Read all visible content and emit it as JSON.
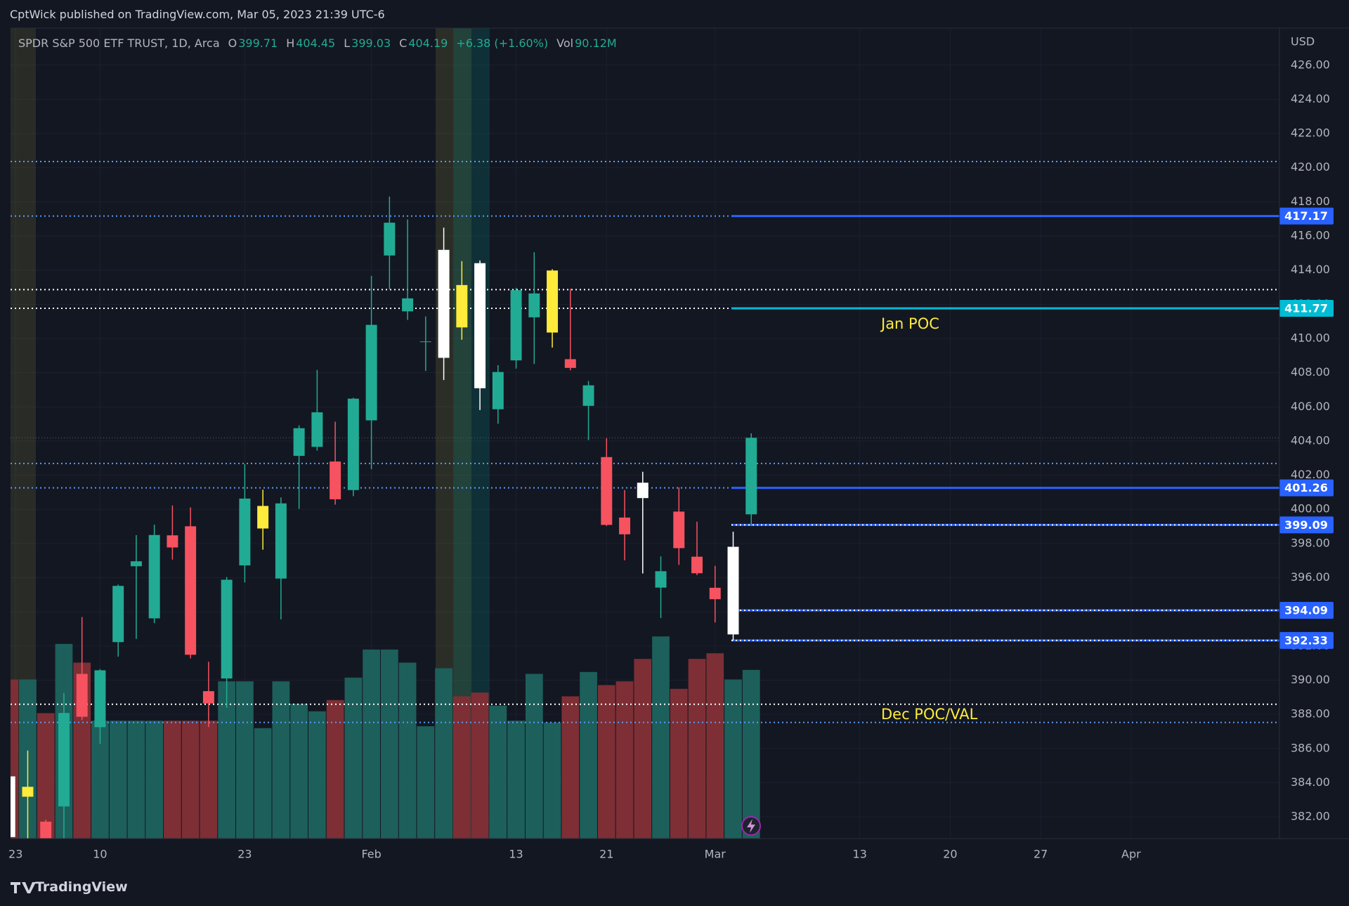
{
  "header": {
    "published": "CptWick published on TradingView.com, Mar 05, 2023 21:39 UTC-6"
  },
  "footer": {
    "brand": "TradingView"
  },
  "chart_data": {
    "type": "candlestick",
    "title": "SPDR S&P 500 ETF TRUST, 1D, Arca",
    "legend_keys": [
      "O",
      "H",
      "L",
      "C"
    ],
    "change_label": "+6.38 (+1.60%)",
    "currency": "USD",
    "open": [
      384.37,
      383.18,
      381.72,
      382.61,
      390.37,
      387.25,
      392.23,
      396.67,
      393.62,
      398.48,
      399.01,
      389.36,
      390.1,
      396.72,
      398.88,
      395.95,
      403.13,
      403.66,
      402.8,
      401.13,
      405.21,
      414.86,
      411.59,
      409.79,
      408.87,
      413.13,
      414.41,
      405.86,
      408.72,
      411.24,
      410.35,
      408.79,
      406.06,
      403.06,
      399.52,
      401.56,
      395.42,
      399.87,
      397.23,
      395.41,
      392.68,
      399.71
    ],
    "high": [
      386.43,
      385.88,
      381.84,
      389.25,
      393.7,
      390.65,
      395.6,
      398.49,
      399.1,
      400.23,
      400.12,
      391.08,
      396.04,
      402.65,
      401.15,
      400.7,
      404.92,
      408.16,
      405.13,
      406.53,
      413.67,
      418.31,
      416.97,
      411.29,
      416.49,
      414.53,
      414.57,
      408.44,
      412.97,
      415.05,
      414.06,
      412.91,
      407.51,
      404.16,
      401.13,
      402.2,
      397.25,
      401.29,
      399.28,
      396.69,
      398.69,
      404.45
    ],
    "low": [
      377.83,
      380.0,
      378.76,
      379.41,
      387.67,
      386.27,
      391.38,
      392.42,
      393.34,
      397.06,
      391.28,
      387.26,
      388.38,
      395.72,
      397.64,
      393.56,
      400.03,
      403.44,
      400.28,
      400.77,
      402.35,
      412.88,
      411.09,
      408.1,
      407.57,
      409.93,
      405.81,
      405.01,
      408.24,
      408.51,
      409.47,
      408.14,
      404.05,
      399.03,
      397.02,
      396.25,
      393.64,
      396.75,
      396.15,
      393.38,
      392.33,
      399.03
    ],
    "close": [
      380.82,
      383.76,
      379.38,
      388.08,
      387.86,
      390.58,
      395.52,
      396.96,
      398.5,
      397.77,
      391.49,
      388.64,
      395.88,
      400.63,
      400.2,
      400.35,
      404.75,
      405.68,
      400.59,
      406.48,
      410.8,
      416.78,
      412.35,
      409.83,
      415.19,
      410.65,
      407.09,
      408.04,
      412.83,
      412.64,
      413.98,
      408.28,
      407.26,
      399.09,
      398.54,
      400.66,
      396.38,
      397.73,
      396.26,
      394.74,
      397.81,
      404.19
    ],
    "colors": [
      "#ffffff",
      "#ffeb3b",
      "#f7525f",
      "#22ab94",
      "#f7525f",
      "#22ab94",
      "#22ab94",
      "#22ab94",
      "#22ab94",
      "#f7525f",
      "#f7525f",
      "#f7525f",
      "#22ab94",
      "#22ab94",
      "#ffeb3b",
      "#22ab94",
      "#22ab94",
      "#22ab94",
      "#f7525f",
      "#22ab94",
      "#22ab94",
      "#22ab94",
      "#22ab94",
      "#22ab94",
      "#ffffff",
      "#ffeb3b",
      "#ffffff",
      "#22ab94",
      "#22ab94",
      "#22ab94",
      "#ffeb3b",
      "#f7525f",
      "#22ab94",
      "#f7525f",
      "#f7525f",
      "#ffffff",
      "#22ab94",
      "#f7525f",
      "#f7525f",
      "#f7525f",
      "#ffffff",
      "#22ab94"
    ],
    "volume": {
      "name": "Vol",
      "axis": "y2",
      "up_color": "#1d5f5b",
      "down_color": "#7d2f35",
      "values": [
        85,
        85,
        67,
        104,
        94,
        63,
        63,
        63,
        63,
        63,
        63,
        63,
        84,
        84,
        59,
        84,
        72,
        68,
        74,
        86,
        101,
        101,
        94,
        60,
        91,
        76,
        78,
        71,
        63,
        88,
        62,
        76,
        89,
        82,
        84,
        96,
        108,
        80,
        96,
        99,
        85,
        90.12
      ],
      "value_labels": [
        null,
        null,
        null,
        null,
        null,
        null,
        null,
        null,
        null,
        null,
        null,
        null,
        null,
        null,
        null,
        null,
        null,
        null,
        null,
        null,
        null,
        null,
        null,
        null,
        null,
        null,
        null,
        null,
        null,
        null,
        null,
        null,
        null,
        null,
        null,
        null,
        null,
        null,
        null,
        null,
        null,
        "90.12M"
      ]
    },
    "xlim": [
      0.05,
      70.2
    ],
    "xticks": [
      {
        "value": 0.33,
        "label": "23"
      },
      {
        "value": 5,
        "label": "10"
      },
      {
        "value": 13,
        "label": "23"
      },
      {
        "value": 20,
        "label": "Feb"
      },
      {
        "value": 28,
        "label": "13"
      },
      {
        "value": 33,
        "label": "21"
      },
      {
        "value": 39,
        "label": "Mar"
      },
      {
        "value": 47,
        "label": "13"
      },
      {
        "value": 52,
        "label": "20"
      },
      {
        "value": 57,
        "label": "27"
      },
      {
        "value": 62,
        "label": "Apr"
      }
    ],
    "ylim": [
      380.73,
      428.17
    ],
    "yticks": [
      {
        "value": 382,
        "label": "382.00"
      },
      {
        "value": 384,
        "label": "384.00"
      },
      {
        "value": 386,
        "label": "386.00"
      },
      {
        "value": 388,
        "label": "388.00"
      },
      {
        "value": 390,
        "label": "390.00"
      },
      {
        "value": 392,
        "label": "392.00"
      },
      {
        "value": 394,
        "label": "394.00"
      },
      {
        "value": 396,
        "label": "396.00"
      },
      {
        "value": 398,
        "label": "398.00"
      },
      {
        "value": 400,
        "label": "400.00"
      },
      {
        "value": 402,
        "label": "402.00"
      },
      {
        "value": 404,
        "label": "404.00"
      },
      {
        "value": 406,
        "label": "406.00"
      },
      {
        "value": 408,
        "label": "408.00"
      },
      {
        "value": 410,
        "label": "410.00"
      },
      {
        "value": 412,
        "label": "412.00"
      },
      {
        "value": 414,
        "label": "414.00"
      },
      {
        "value": 416,
        "label": "416.00"
      },
      {
        "value": 418,
        "label": "418.00"
      },
      {
        "value": 420,
        "label": "420.00"
      },
      {
        "value": 422,
        "label": "422.00"
      },
      {
        "value": 424,
        "label": "424.00"
      },
      {
        "value": 426,
        "label": "426.00"
      }
    ],
    "y2lim": [
      0,
      433
    ],
    "grid": true,
    "levels": [
      {
        "value": 417.17,
        "color": "#2962ff",
        "style": "solid",
        "left": "#5b9cf6"
      },
      {
        "value": 411.77,
        "color": "#00bcd4",
        "style": "solid",
        "left": "#ffffff"
      },
      {
        "value": 401.26,
        "color": "#2962ff",
        "style": "solid",
        "left": "#5b9cf6"
      },
      {
        "value": 399.09,
        "color": "#2962ff",
        "style": "dotted",
        "left": null
      },
      {
        "value": 394.09,
        "color": "#2962ff",
        "style": "dotted",
        "left": null
      },
      {
        "value": 392.33,
        "color": "#2962ff",
        "style": "dotted",
        "left": null
      }
    ],
    "dotted_lines": [
      {
        "value": 420.36,
        "color": "#5b9cf6"
      },
      {
        "value": 412.86,
        "color": "#ffffff"
      },
      {
        "value": 402.69,
        "color": "#5b9cf6"
      },
      {
        "value": 388.59,
        "color": "#ffffff"
      },
      {
        "value": 387.53,
        "color": "#5b9cf6"
      }
    ],
    "annotations": [
      {
        "text": "Jan POC",
        "color": "#ffeb3b"
      },
      {
        "text": "Dec POC/VAL",
        "color": "#ffeb3b"
      }
    ]
  }
}
